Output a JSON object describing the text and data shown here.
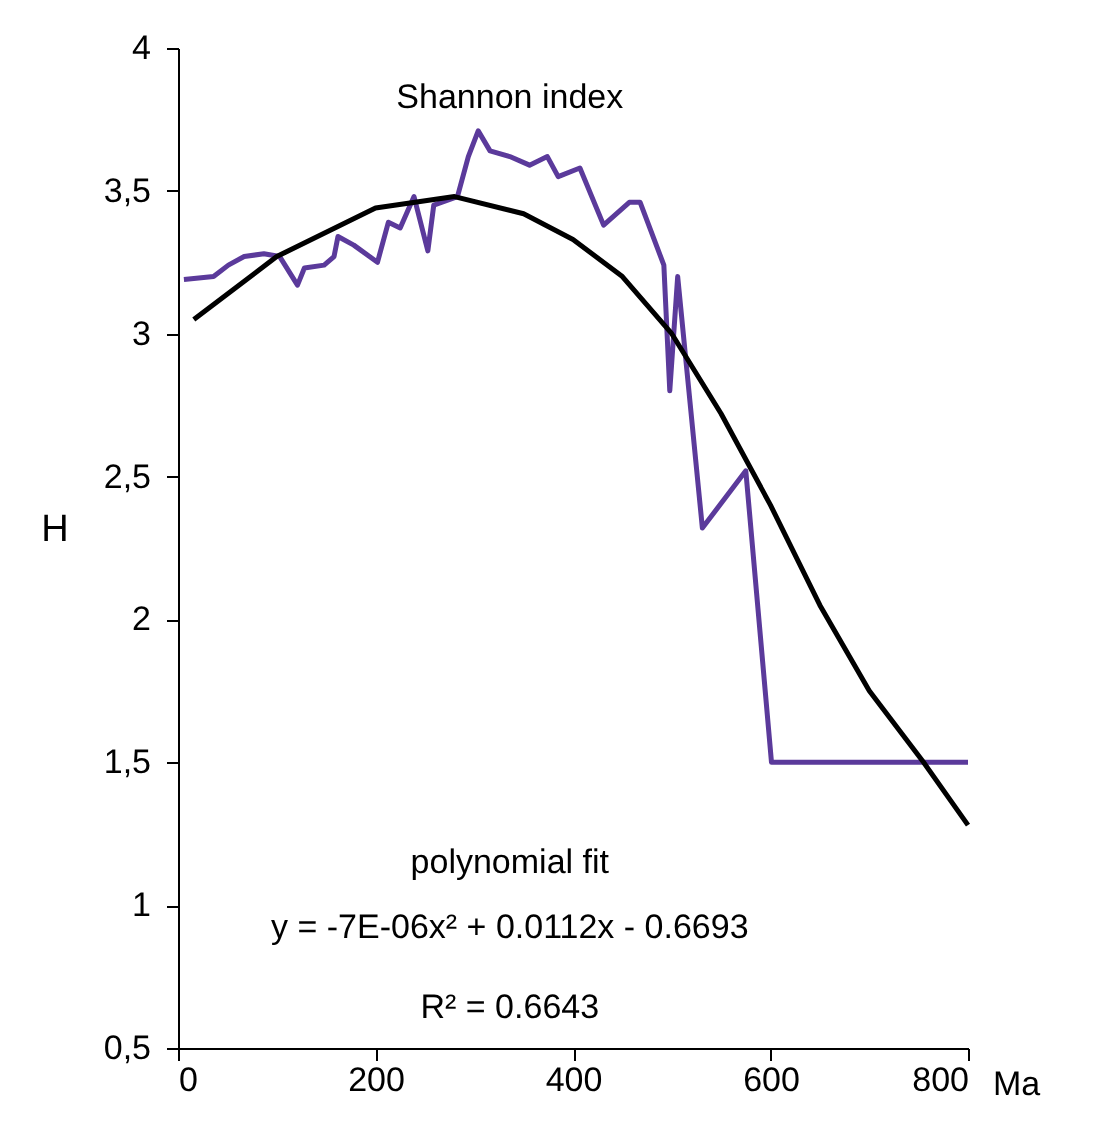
{
  "chart_data": {
    "type": "line",
    "xlabel": "Ma",
    "ylabel": "H",
    "x": [
      6,
      36,
      51,
      67,
      87,
      103,
      121,
      128,
      148,
      158,
      162,
      178,
      202,
      213,
      225,
      239,
      253,
      259,
      283,
      294,
      304,
      316,
      336,
      356,
      374,
      385,
      407,
      431,
      457,
      468,
      492,
      498,
      506,
      531,
      575,
      601,
      800
    ],
    "series": [
      {
        "color": "#5b3a9b",
        "values": [
          3.19,
          3.2,
          3.24,
          3.27,
          3.28,
          3.27,
          3.17,
          3.23,
          3.24,
          3.27,
          3.34,
          3.31,
          3.25,
          3.39,
          3.37,
          3.48,
          3.29,
          3.45,
          3.48,
          3.62,
          3.71,
          3.64,
          3.62,
          3.59,
          3.62,
          3.55,
          3.58,
          3.38,
          3.46,
          3.46,
          3.24,
          2.8,
          3.2,
          2.32,
          2.52,
          1.5,
          1.5
        ]
      },
      {
        "type": "line",
        "color": "#000000",
        "x": [
          16,
          100,
          200,
          280,
          350,
          400,
          450,
          500,
          550,
          600,
          650,
          700,
          755,
          800
        ],
        "values": [
          3.05,
          3.27,
          3.44,
          3.48,
          3.42,
          3.33,
          3.2,
          3.0,
          2.72,
          2.4,
          2.05,
          1.75,
          1.5,
          1.28
        ]
      }
    ],
    "xlim": [
      0,
      800
    ],
    "xticks": [
      0,
      200,
      400,
      600,
      800
    ],
    "ylim": [
      0.5,
      4
    ],
    "yticks": [
      {
        "value": 0.5,
        "label": "0,5"
      },
      1,
      {
        "value": 1.5,
        "label": "1,5"
      },
      2,
      {
        "value": 2.5,
        "label": "2,5"
      },
      3,
      {
        "value": 3.5,
        "label": "3,5"
      },
      4
    ],
    "grid": false,
    "marker": "none",
    "line_style": "solid",
    "annotations": [
      "Shannon index",
      "polynomial fit",
      "y = -7E-06x² + 0.0112x - 0.6693",
      "R² = 0.6643"
    ]
  }
}
